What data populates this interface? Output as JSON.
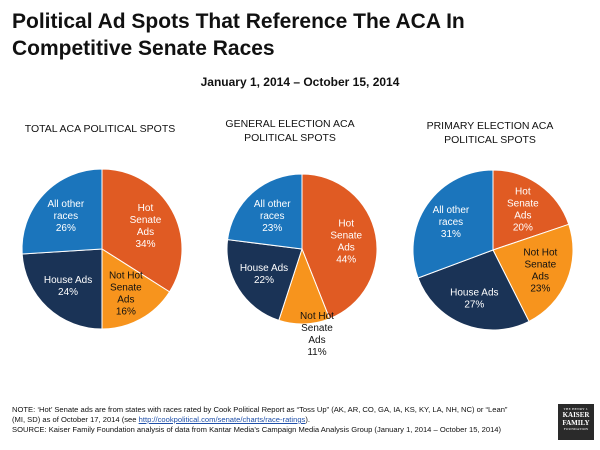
{
  "title": "Political Ad Spots That Reference The ACA In Competitive Senate Races",
  "subtitle": "January 1, 2014 – October 15, 2014",
  "chart_data": [
    {
      "type": "pie",
      "title": "TOTAL ACA POLITICAL SPOTS",
      "slices": [
        {
          "label": "Hot Senate Ads",
          "value": 34,
          "color": "#e05b23"
        },
        {
          "label": "Not Hot Senate Ads",
          "value": 16,
          "color": "#f7941d"
        },
        {
          "label": "House Ads",
          "value": 24,
          "color": "#1a3356"
        },
        {
          "label": "All other races",
          "value": 26,
          "color": "#1b75bc"
        }
      ]
    },
    {
      "type": "pie",
      "title": "GENERAL ELECTION ACA POLITICAL SPOTS",
      "slices": [
        {
          "label": "Hot Senate Ads",
          "value": 44,
          "color": "#e05b23"
        },
        {
          "label": "Not Hot Senate Ads",
          "value": 11,
          "color": "#f7941d"
        },
        {
          "label": "House Ads",
          "value": 22,
          "color": "#1a3356"
        },
        {
          "label": "All other races",
          "value": 23,
          "color": "#1b75bc"
        }
      ]
    },
    {
      "type": "pie",
      "title": "PRIMARY ELECTION ACA POLITICAL SPOTS",
      "slices": [
        {
          "label": "Hot Senate Ads",
          "value": 20,
          "color": "#e05b23"
        },
        {
          "label": "Not Hot Senate Ads",
          "value": 23,
          "color": "#f7941d"
        },
        {
          "label": "House Ads",
          "value": 27,
          "color": "#1a3356"
        },
        {
          "label": "All other races",
          "value": 31,
          "color": "#1b75bc"
        }
      ]
    }
  ],
  "note": {
    "line1": "NOTE: ‘Hot’ Senate ads are from states  with races rated by Cook Political Report as “Toss Up” (AK, AR, CO, GA, IA, KS, KY, LA, NH, NC) or “Lean”",
    "line2_pre": "(MI, SD) as of October 17, 2014 (see ",
    "line2_link": "http://cookpolitical.com/senate/charts/race-ratings",
    "line2_post": ").",
    "line3": "SOURCE: Kaiser Family Foundation analysis of data from Kantar Media’s Campaign Media Analysis Group (January 1, 2014 – October 15, 2014)"
  },
  "logo": {
    "line1": "THE HENRY J.",
    "line2a": "KAISER",
    "line2b": "FAMILY",
    "line3": "FOUNDATION"
  }
}
